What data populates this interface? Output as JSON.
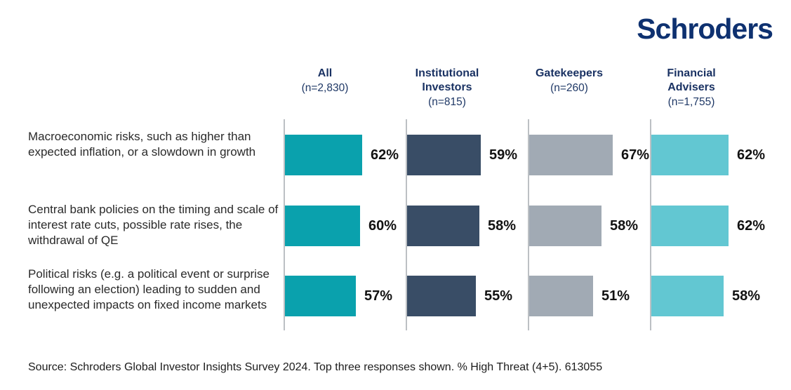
{
  "logo": {
    "text": "Schroders",
    "color": "#0e3170"
  },
  "footer": {
    "source": "Source: Schroders Global Investor Insights Survey 2024. Top three responses shown. % High Threat (4+5). 613055"
  },
  "chart_data": {
    "type": "bar",
    "orientation": "horizontal",
    "unit": "%",
    "title": "",
    "xlim": [
      0,
      100
    ],
    "grid": false,
    "legend_position": "column-headers-top",
    "categories": [
      "Macroeconomic risks, such as higher than expected inflation, or a slowdown in growth",
      "Central bank policies on the timing and scale of interest rate cuts, possible rate rises, the withdrawal of QE",
      "Political risks (e.g. a political event or surprise following an election) leading to sudden and unexpected impacts on fixed income markets"
    ],
    "series": [
      {
        "name": "All",
        "n_label": "(n=2,830)",
        "color": "#0aa1ad",
        "values": [
          62,
          60,
          57
        ]
      },
      {
        "name": "Institutional Investors",
        "n_label": "(n=815)",
        "color": "#394d66",
        "values": [
          59,
          58,
          55
        ]
      },
      {
        "name": "Gatekeepers",
        "n_label": "(n=260)",
        "color": "#a1aab4",
        "values": [
          67,
          58,
          51
        ]
      },
      {
        "name": "Financial Advisers",
        "n_label": "(n=1,755)",
        "color": "#62c7d2",
        "values": [
          62,
          62,
          58
        ]
      }
    ],
    "value_label_suffix": "%"
  }
}
